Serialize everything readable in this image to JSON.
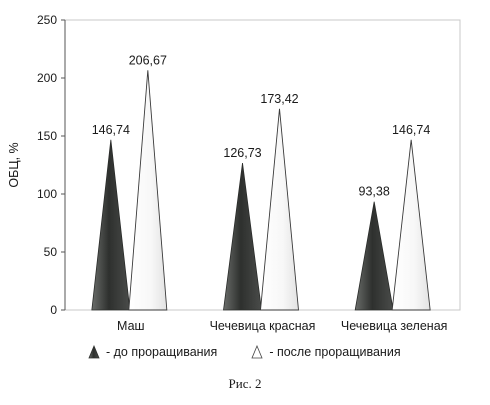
{
  "chart_data": {
    "type": "bar",
    "categories": [
      "Маш",
      "Чечевица красная",
      "Чечевица зеленая"
    ],
    "series": [
      {
        "name": "- до проращивания",
        "values": [
          146.74,
          126.73,
          93.38
        ],
        "labels": [
          "146,74",
          "126,73",
          "93,38"
        ],
        "color": "#3c3e3c",
        "fill_style": "dark-cone"
      },
      {
        "name": "- после проращивания",
        "values": [
          206.67,
          173.42,
          146.74
        ],
        "labels": [
          "206,67",
          "173,42",
          "146,74"
        ],
        "color": "#ffffff",
        "fill_style": "white-cone"
      }
    ],
    "ylabel": "ОБЦ, %",
    "xlabel": "",
    "ylim": [
      0,
      250
    ],
    "yticks": [
      0,
      50,
      100,
      150,
      200,
      250
    ],
    "grid": false,
    "legend_position": "bottom"
  },
  "legend": {
    "before": "- до проращивания",
    "after": "- после проращивания"
  },
  "caption": "Рис. 2"
}
